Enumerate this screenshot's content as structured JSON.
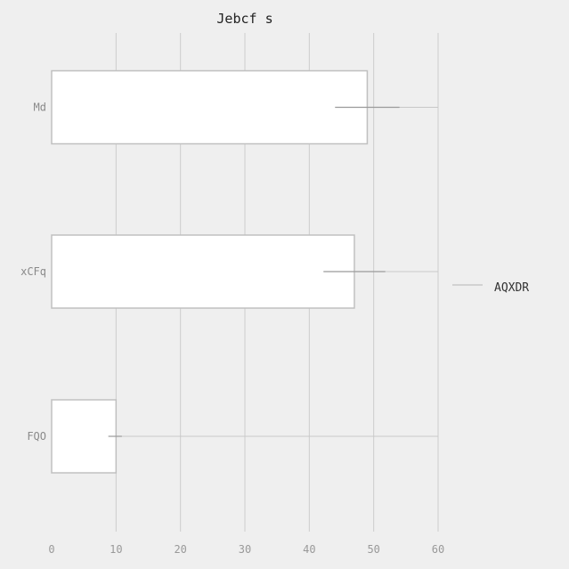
{
  "chart_data": {
    "type": "bar",
    "orientation": "horizontal",
    "title": "Jebcf s",
    "xlabel": "",
    "ylabel": "",
    "categories": [
      "Md",
      "xCFq",
      "FQO"
    ],
    "series": [
      {
        "name": "",
        "values": [
          49,
          47,
          10
        ],
        "error_low": [
          44,
          42.2,
          8.8
        ],
        "error_high": [
          54,
          51.8,
          10.9
        ],
        "bar_color": "#ffffff",
        "edge_color": "#c0c0c0"
      }
    ],
    "reference_lines": [
      {
        "name": "AQXDR",
        "values": [
          60,
          60,
          60
        ],
        "color": "#c8c8c8"
      }
    ],
    "xlim": [
      0,
      60
    ],
    "xticks": [
      0,
      10,
      20,
      30,
      40,
      50,
      60
    ],
    "grid": true,
    "legend_position": "right",
    "colors": {
      "background": "#efefef",
      "grid": "#cccccc",
      "error": "#9a9a9a"
    }
  }
}
